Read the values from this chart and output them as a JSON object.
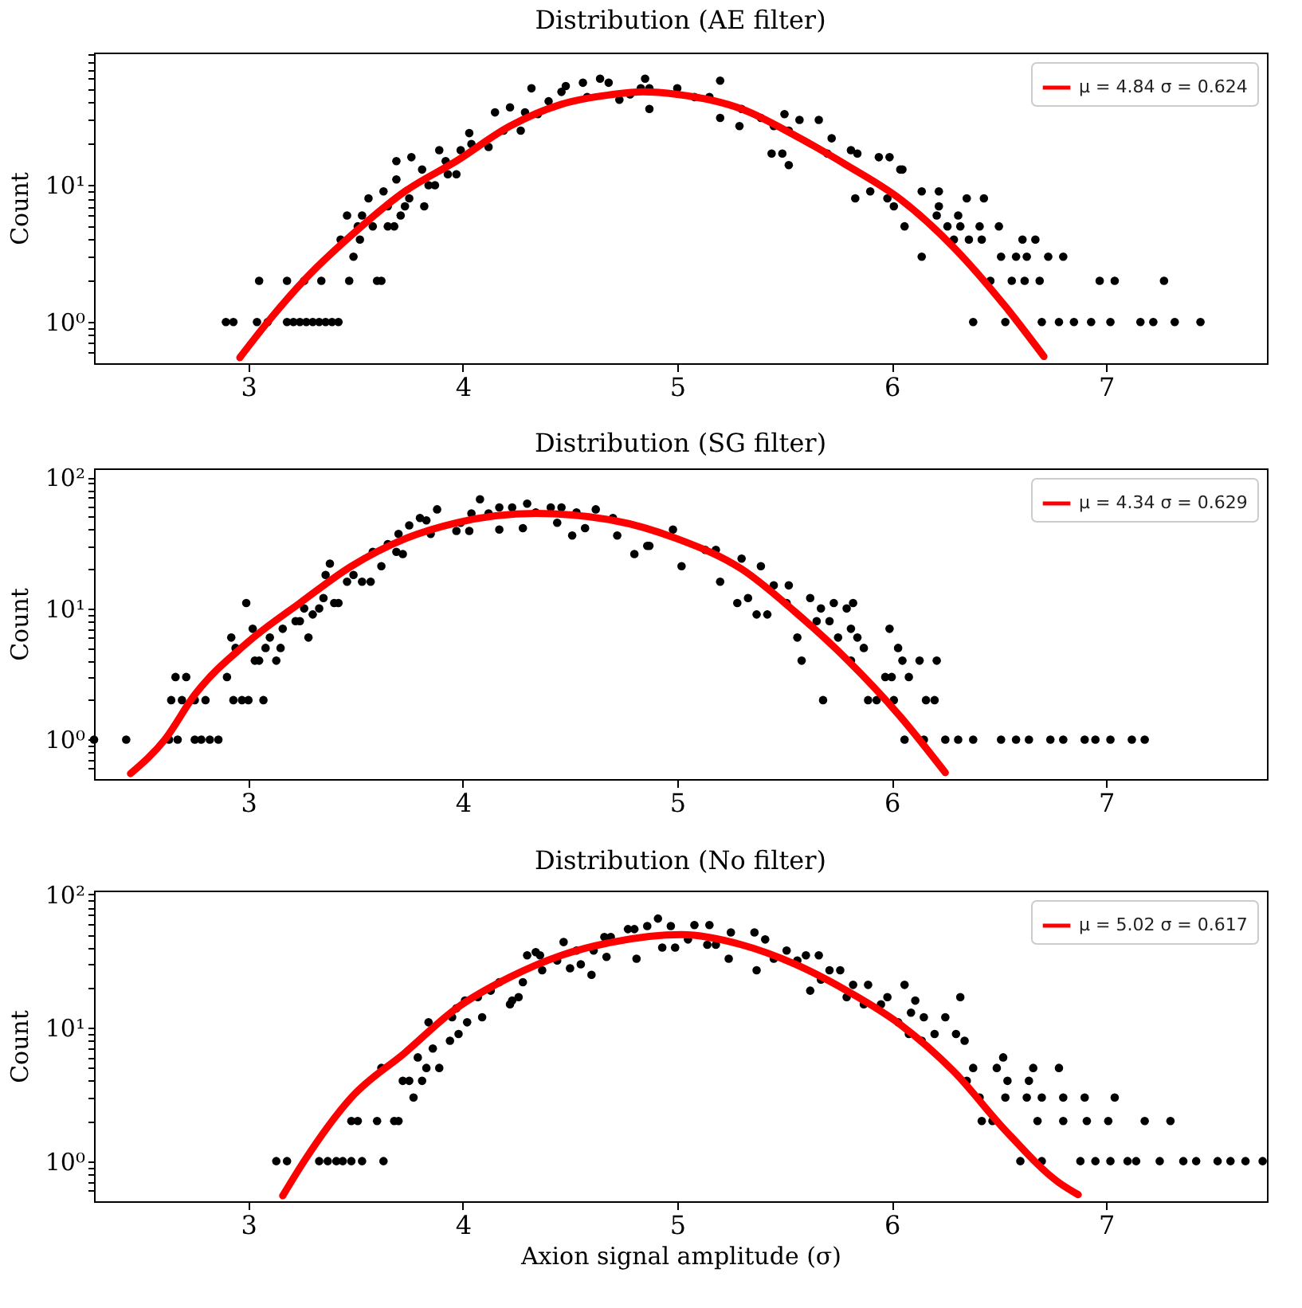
{
  "chart_data": [
    {
      "type": "scatter",
      "title": "Distribution (AE filter)",
      "ylabel": "Count",
      "log": "y",
      "legend": "top right",
      "xlim": [
        2.28,
        7.75
      ],
      "xticks": [
        3,
        4,
        5,
        6,
        7
      ],
      "ylim": [
        0.5,
        93
      ],
      "yticks": [
        {
          "value": 0.6,
          "label": null
        },
        {
          "value": 0.7,
          "label": null
        },
        {
          "value": 0.8,
          "label": null
        },
        {
          "value": 0.9,
          "label": null
        },
        {
          "value": 1,
          "label": "10⁰"
        },
        {
          "value": 2,
          "label": null
        },
        {
          "value": 3,
          "label": null
        },
        {
          "value": 4,
          "label": null
        },
        {
          "value": 5,
          "label": null
        },
        {
          "value": 6,
          "label": null
        },
        {
          "value": 7,
          "label": null
        },
        {
          "value": 8,
          "label": null
        },
        {
          "value": 9,
          "label": null
        },
        {
          "value": 10,
          "label": "10¹"
        },
        {
          "value": 20,
          "label": null
        },
        {
          "value": 30,
          "label": null
        },
        {
          "value": 40,
          "label": null
        },
        {
          "value": 50,
          "label": null
        },
        {
          "value": 60,
          "label": null
        },
        {
          "value": 70,
          "label": null
        },
        {
          "value": 80,
          "label": null
        },
        {
          "value": 90,
          "label": null
        }
      ],
      "series": [
        {
          "type": "scatter",
          "color": "#000000",
          "x": [
            2.895,
            2.93,
            3.04,
            3.05,
            3.09,
            3.18,
            3.18,
            3.21,
            3.24,
            3.26,
            3.27,
            3.3,
            3.33,
            3.34,
            3.36,
            3.39,
            3.42,
            3.43,
            3.46,
            3.47,
            3.49,
            3.51,
            3.52,
            3.53,
            3.56,
            3.58,
            3.6,
            3.62,
            3.63,
            3.65,
            3.65,
            3.68,
            3.69,
            3.69,
            3.71,
            3.73,
            3.75,
            3.76,
            3.81,
            3.82,
            3.84,
            3.87,
            3.89,
            3.92,
            3.93,
            3.97,
            3.99,
            4.03,
            4.04,
            4.12,
            4.15,
            4.19,
            4.22,
            4.27,
            4.29,
            4.32,
            4.35,
            4.4,
            4.46,
            4.48,
            4.56,
            4.58,
            4.64,
            4.68,
            4.73,
            4.78,
            4.83,
            4.85,
            4.87,
            4.87,
            5.0,
            5.08,
            5.15,
            5.2,
            5.2,
            5.29,
            5.3,
            5.39,
            5.44,
            5.45,
            5.49,
            5.5,
            5.52,
            5.52,
            5.57,
            5.66,
            5.7,
            5.72,
            5.81,
            5.83,
            5.84,
            5.9,
            5.94,
            5.98,
            5.99,
            6.01,
            6.04,
            6.05,
            6.06,
            6.14,
            6.14,
            6.21,
            6.22,
            6.22,
            6.26,
            6.29,
            6.31,
            6.32,
            6.35,
            6.36,
            6.38,
            6.41,
            6.42,
            6.43,
            6.46,
            6.5,
            6.51,
            6.53,
            6.56,
            6.58,
            6.61,
            6.62,
            6.63,
            6.67,
            6.69,
            6.7,
            6.73,
            6.78,
            6.8,
            6.85,
            6.93,
            6.97,
            7.02,
            7.04,
            7.16,
            7.22,
            7.27,
            7.32,
            7.44
          ],
          "values": [
            1,
            1,
            1,
            2,
            1,
            1,
            2,
            1,
            1,
            2,
            1,
            1,
            1,
            2,
            1,
            1,
            1,
            4,
            6,
            2,
            3,
            5,
            4,
            6,
            8,
            5,
            2,
            2,
            9,
            5,
            7,
            5,
            11,
            15,
            6,
            7,
            8,
            16,
            13,
            7,
            10,
            10,
            18,
            15,
            12,
            12,
            18,
            24,
            20,
            19,
            34,
            25,
            37,
            25,
            34,
            51,
            33,
            41,
            48,
            53,
            56,
            44,
            60,
            56,
            42,
            46,
            51,
            60,
            51,
            36,
            51,
            44,
            44,
            58,
            31,
            27,
            36,
            31,
            17,
            27,
            17,
            33,
            25,
            14,
            30,
            30,
            17,
            22,
            18,
            8,
            17,
            9,
            16,
            8,
            16,
            7,
            13,
            13,
            5,
            9,
            3,
            6,
            9,
            7,
            5,
            4,
            6,
            5,
            8,
            4,
            1,
            5,
            4,
            8,
            2,
            5,
            3,
            1,
            2,
            3,
            4,
            2,
            3,
            4,
            2,
            1,
            3,
            1,
            3,
            1,
            1,
            2,
            1,
            2,
            1,
            1,
            2,
            1,
            1
          ]
        },
        {
          "type": "line",
          "name": "μ = 4.84 σ = 0.624",
          "color": "#ff0000",
          "x": [
            2.96,
            3.09,
            3.27,
            3.48,
            3.73,
            3.97,
            4.22,
            4.46,
            4.7,
            4.84,
            5.0,
            5.3,
            5.55,
            5.79,
            6.04,
            6.29,
            6.53,
            6.71
          ],
          "values": [
            0.55,
            1,
            2.1,
            4.3,
            9,
            15,
            27,
            39,
            46,
            48,
            46,
            36,
            23,
            14,
            7.9,
            3.5,
            1.3,
            0.56
          ]
        }
      ]
    },
    {
      "type": "scatter",
      "title": "Distribution (SG filter)",
      "ylabel": "Count",
      "log": "y",
      "legend": "top right",
      "xlim": [
        2.28,
        7.75
      ],
      "xticks": [
        3,
        4,
        5,
        6,
        7
      ],
      "ylim": [
        0.5,
        117
      ],
      "yticks": [
        {
          "value": 0.6,
          "label": null
        },
        {
          "value": 0.7,
          "label": null
        },
        {
          "value": 0.8,
          "label": null
        },
        {
          "value": 0.9,
          "label": null
        },
        {
          "value": 1,
          "label": "10⁰"
        },
        {
          "value": 2,
          "label": null
        },
        {
          "value": 3,
          "label": null
        },
        {
          "value": 4,
          "label": null
        },
        {
          "value": 5,
          "label": null
        },
        {
          "value": 6,
          "label": null
        },
        {
          "value": 7,
          "label": null
        },
        {
          "value": 8,
          "label": null
        },
        {
          "value": 9,
          "label": null
        },
        {
          "value": 10,
          "label": "10¹"
        },
        {
          "value": 20,
          "label": null
        },
        {
          "value": 30,
          "label": null
        },
        {
          "value": 40,
          "label": null
        },
        {
          "value": 50,
          "label": null
        },
        {
          "value": 60,
          "label": null
        },
        {
          "value": 70,
          "label": null
        },
        {
          "value": 80,
          "label": null
        },
        {
          "value": 90,
          "label": null
        },
        {
          "value": 100,
          "label": "10²"
        }
      ],
      "series": [
        {
          "type": "scatter",
          "color": "#000000",
          "x": [
            2.28,
            2.43,
            2.63,
            2.64,
            2.66,
            2.67,
            2.69,
            2.71,
            2.75,
            2.75,
            2.78,
            2.8,
            2.82,
            2.86,
            2.9,
            2.92,
            2.93,
            2.94,
            2.97,
            2.99,
            3.0,
            3.02,
            3.03,
            3.05,
            3.07,
            3.08,
            3.1,
            3.13,
            3.15,
            3.16,
            3.22,
            3.24,
            3.26,
            3.28,
            3.3,
            3.33,
            3.35,
            3.36,
            3.38,
            3.4,
            3.42,
            3.46,
            3.49,
            3.53,
            3.57,
            3.58,
            3.62,
            3.65,
            3.69,
            3.7,
            3.72,
            3.75,
            3.8,
            3.83,
            3.85,
            3.88,
            3.97,
            3.99,
            4.03,
            4.04,
            4.08,
            4.12,
            4.17,
            4.17,
            4.23,
            4.28,
            4.3,
            4.34,
            4.41,
            4.44,
            4.46,
            4.51,
            4.53,
            4.57,
            4.62,
            4.7,
            4.72,
            4.8,
            4.86,
            4.87,
            4.98,
            5.02,
            5.13,
            5.18,
            5.2,
            5.28,
            5.3,
            5.33,
            5.37,
            5.39,
            5.42,
            5.45,
            5.51,
            5.52,
            5.56,
            5.58,
            5.62,
            5.65,
            5.67,
            5.68,
            5.71,
            5.73,
            5.75,
            5.79,
            5.81,
            5.81,
            5.82,
            5.84,
            5.87,
            5.89,
            5.93,
            5.97,
            5.99,
            6.0,
            6.01,
            6.03,
            6.05,
            6.06,
            6.08,
            6.13,
            6.15,
            6.16,
            6.2,
            6.21,
            6.25,
            6.31,
            6.38,
            6.51,
            6.58,
            6.64,
            6.74,
            6.8,
            6.9,
            6.95,
            7.02,
            7.12,
            7.18
          ],
          "values": [
            1,
            1,
            1,
            2,
            3,
            1,
            2,
            3,
            1,
            2,
            1,
            2,
            1,
            1,
            3,
            6,
            2,
            5,
            2,
            11,
            2,
            7,
            4,
            4,
            2,
            5,
            6,
            4,
            5,
            7,
            8,
            8,
            10,
            6,
            9,
            10,
            12,
            18,
            22,
            11,
            11,
            16,
            18,
            16,
            16,
            27,
            21,
            31,
            27,
            37,
            26,
            43,
            49,
            47,
            37,
            57,
            39,
            45,
            39,
            53,
            68,
            53,
            59,
            40,
            59,
            41,
            63,
            54,
            59,
            45,
            59,
            36,
            54,
            41,
            57,
            49,
            36,
            26,
            30,
            30,
            40,
            21,
            28,
            28,
            16,
            11,
            24,
            12,
            9,
            21,
            9,
            15,
            11,
            15,
            6,
            4,
            12,
            8,
            10,
            2,
            8,
            11,
            6,
            10,
            7,
            4,
            11,
            6,
            5,
            2,
            2,
            3,
            7,
            3,
            2,
            5,
            4,
            1,
            3,
            4,
            1,
            2,
            2,
            4,
            1,
            1,
            1,
            1,
            1,
            1,
            1,
            1,
            1,
            1,
            1,
            1,
            1
          ]
        },
        {
          "type": "line",
          "name": "μ = 4.34 σ = 0.629",
          "color": "#ff0000",
          "x": [
            2.45,
            2.61,
            2.75,
            2.99,
            3.24,
            3.48,
            3.73,
            3.97,
            4.34,
            4.7,
            5.0,
            5.3,
            5.55,
            5.79,
            6.04,
            6.25
          ],
          "values": [
            0.55,
            1,
            2.2,
            5.4,
            11,
            21,
            34,
            45,
            53,
            47,
            34,
            20,
            9.4,
            4.1,
            1.5,
            0.56
          ]
        }
      ]
    },
    {
      "type": "scatter",
      "title": "Distribution (No filter)",
      "ylabel": "Count",
      "xlabel": "Axion signal amplitude (σ)",
      "log": "y",
      "legend": "top right",
      "xlim": [
        2.28,
        7.75
      ],
      "xticks": [
        3,
        4,
        5,
        6,
        7
      ],
      "ylim": [
        0.5,
        107
      ],
      "yticks": [
        {
          "value": 0.6,
          "label": null
        },
        {
          "value": 0.7,
          "label": null
        },
        {
          "value": 0.8,
          "label": null
        },
        {
          "value": 0.9,
          "label": null
        },
        {
          "value": 1,
          "label": "10⁰"
        },
        {
          "value": 2,
          "label": null
        },
        {
          "value": 3,
          "label": null
        },
        {
          "value": 4,
          "label": null
        },
        {
          "value": 5,
          "label": null
        },
        {
          "value": 6,
          "label": null
        },
        {
          "value": 7,
          "label": null
        },
        {
          "value": 8,
          "label": null
        },
        {
          "value": 9,
          "label": null
        },
        {
          "value": 10,
          "label": "10¹"
        },
        {
          "value": 20,
          "label": null
        },
        {
          "value": 30,
          "label": null
        },
        {
          "value": 40,
          "label": null
        },
        {
          "value": 50,
          "label": null
        },
        {
          "value": 60,
          "label": null
        },
        {
          "value": 70,
          "label": null
        },
        {
          "value": 80,
          "label": null
        },
        {
          "value": 90,
          "label": null
        },
        {
          "value": 100,
          "label": "10²"
        }
      ],
      "series": [
        {
          "type": "scatter",
          "color": "#000000",
          "x": [
            3.13,
            3.18,
            3.33,
            3.37,
            3.41,
            3.44,
            3.48,
            3.48,
            3.51,
            3.53,
            3.6,
            3.62,
            3.63,
            3.68,
            3.7,
            3.72,
            3.75,
            3.77,
            3.79,
            3.81,
            3.83,
            3.84,
            3.86,
            3.89,
            3.94,
            3.95,
            3.97,
            3.98,
            4.01,
            4.02,
            4.07,
            4.09,
            4.13,
            4.17,
            4.22,
            4.23,
            4.26,
            4.28,
            4.3,
            4.34,
            4.36,
            4.37,
            4.44,
            4.47,
            4.5,
            4.53,
            4.55,
            4.6,
            4.61,
            4.66,
            4.67,
            4.69,
            4.77,
            4.8,
            4.81,
            4.86,
            4.91,
            4.93,
            4.97,
            4.99,
            5.05,
            5.08,
            5.14,
            5.15,
            5.18,
            5.24,
            5.25,
            5.36,
            5.37,
            5.41,
            5.45,
            5.51,
            5.56,
            5.6,
            5.62,
            5.66,
            5.67,
            5.71,
            5.76,
            5.79,
            5.82,
            5.87,
            5.89,
            5.95,
            5.98,
            6.03,
            6.06,
            6.08,
            6.09,
            6.11,
            6.14,
            6.15,
            6.2,
            6.25,
            6.3,
            6.32,
            6.34,
            6.35,
            6.38,
            6.41,
            6.42,
            6.47,
            6.49,
            6.52,
            6.53,
            6.54,
            6.6,
            6.63,
            6.64,
            6.66,
            6.68,
            6.7,
            6.7,
            6.78,
            6.8,
            6.8,
            6.88,
            6.9,
            6.91,
            6.95,
            7.01,
            7.02,
            7.04,
            7.1,
            7.14,
            7.18,
            7.25,
            7.3,
            7.36,
            7.42,
            7.52,
            7.58,
            7.65,
            7.73
          ],
          "values": [
            1,
            1,
            1,
            1,
            1,
            1,
            1,
            2,
            2,
            1,
            2,
            5,
            1,
            2,
            2,
            4,
            4,
            3,
            6,
            4,
            5,
            11,
            7,
            5,
            8,
            12,
            14,
            9,
            16,
            11,
            17,
            12,
            19,
            22,
            15,
            16,
            17,
            22,
            35,
            37,
            35,
            27,
            32,
            44,
            28,
            38,
            30,
            25,
            38,
            48,
            34,
            48,
            55,
            55,
            33,
            58,
            66,
            40,
            58,
            40,
            46,
            59,
            42,
            59,
            42,
            33,
            52,
            52,
            27,
            46,
            33,
            38,
            32,
            35,
            19,
            35,
            23,
            27,
            27,
            17,
            21,
            15,
            21,
            15,
            17,
            11,
            21,
            9,
            13,
            16,
            8,
            12,
            9,
            12,
            9,
            17,
            8,
            4,
            5,
            3,
            2,
            2,
            5,
            6,
            3,
            4,
            1,
            3,
            4,
            5,
            2,
            3,
            1,
            5,
            3,
            2,
            1,
            3,
            2,
            1,
            2,
            1,
            3,
            1,
            1,
            2,
            1,
            2,
            1,
            1,
            1,
            1,
            1,
            1
          ]
        },
        {
          "type": "line",
          "name": "μ = 5.02 σ = 0.617",
          "color": "#ff0000",
          "x": [
            3.16,
            3.26,
            3.48,
            3.73,
            3.97,
            4.22,
            4.46,
            4.7,
            5.02,
            5.3,
            5.55,
            5.79,
            6.04,
            6.29,
            6.53,
            6.78,
            6.87
          ],
          "values": [
            0.55,
            1,
            3,
            6.5,
            14,
            24,
            35,
            44,
            50,
            42,
            30,
            19,
            10.6,
            4.7,
            1.7,
            0.69,
            0.56
          ]
        }
      ]
    }
  ]
}
